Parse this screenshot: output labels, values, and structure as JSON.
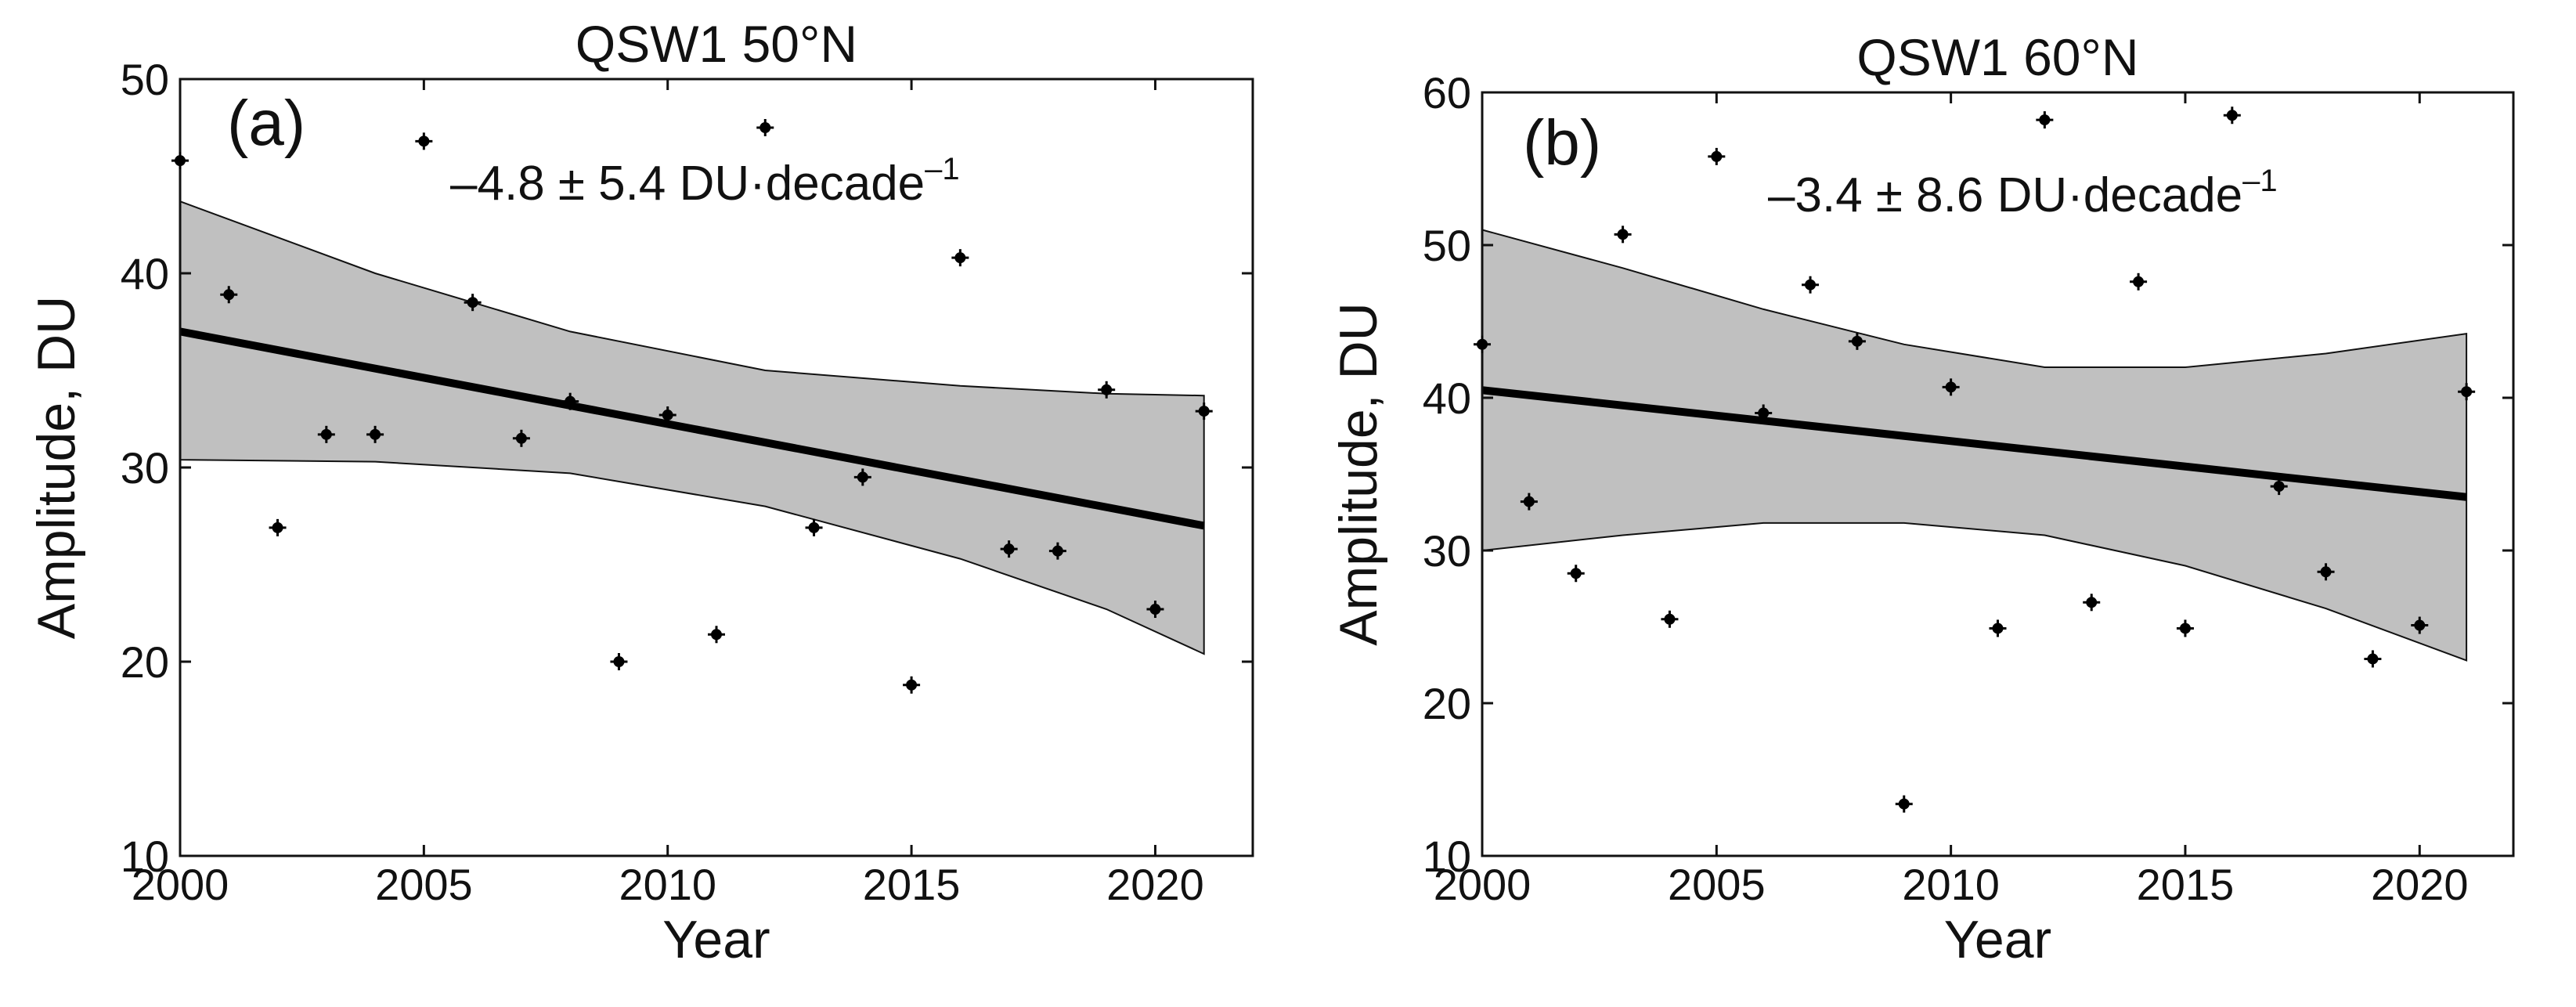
{
  "chart_data": [
    {
      "type": "scatter",
      "title": "QSW1  50°N",
      "panel_label": "(a)",
      "xlabel": "Year",
      "ylabel": "Amplitude,  DU",
      "xlim": [
        2000,
        2022
      ],
      "ylim": [
        10,
        50
      ],
      "x_ticks": [
        2000,
        2005,
        2010,
        2015,
        2020
      ],
      "y_ticks": [
        10,
        20,
        30,
        40,
        50
      ],
      "annotation": {
        "main": "–4.8 ± 5.4 DU·decade",
        "superscript": "–1"
      },
      "points": {
        "x": [
          2000,
          2001,
          2002,
          2003,
          2004,
          2005,
          2006,
          2007,
          2008,
          2009,
          2010,
          2011,
          2012,
          2013,
          2014,
          2015,
          2016,
          2017,
          2018,
          2019,
          2020,
          2021
        ],
        "y": [
          45.8,
          38.9,
          26.9,
          31.7,
          31.7,
          46.8,
          38.5,
          31.5,
          33.4,
          20.0,
          32.7,
          21.4,
          47.5,
          26.9,
          29.5,
          18.8,
          40.8,
          25.8,
          25.7,
          34.0,
          22.7,
          32.9
        ]
      },
      "trend": {
        "x": [
          2000,
          2021
        ],
        "y": [
          37.0,
          27.0
        ]
      },
      "confidence_band": {
        "x": [
          2000,
          2004,
          2008,
          2012,
          2016,
          2019,
          2021
        ],
        "upper": [
          43.7,
          40.0,
          37.0,
          35.0,
          34.2,
          33.8,
          33.7
        ],
        "lower": [
          30.4,
          30.3,
          29.7,
          28.0,
          25.3,
          22.7,
          20.4
        ]
      }
    },
    {
      "type": "scatter",
      "title": "QSW1  60°N",
      "panel_label": "(b)",
      "xlabel": "Year",
      "ylabel": "Amplitude,  DU",
      "xlim": [
        2000,
        2022
      ],
      "ylim": [
        10,
        60
      ],
      "x_ticks": [
        2000,
        2005,
        2010,
        2015,
        2020
      ],
      "y_ticks": [
        10,
        20,
        30,
        40,
        50,
        60
      ],
      "annotation": {
        "main": "–3.4 ± 8.6 DU·decade",
        "superscript": "–1"
      },
      "points": {
        "x": [
          2000,
          2001,
          2002,
          2003,
          2004,
          2005,
          2006,
          2007,
          2008,
          2009,
          2010,
          2011,
          2012,
          2013,
          2014,
          2015,
          2016,
          2017,
          2018,
          2019,
          2020,
          2021
        ],
        "y": [
          43.5,
          33.2,
          28.5,
          50.7,
          25.5,
          55.8,
          39.0,
          47.4,
          43.7,
          13.4,
          40.7,
          24.9,
          58.2,
          26.6,
          47.6,
          24.9,
          58.5,
          34.2,
          28.6,
          22.9,
          25.1,
          40.4
        ]
      },
      "trend": {
        "x": [
          2000,
          2021
        ],
        "y": [
          40.5,
          33.5
        ]
      },
      "confidence_band": {
        "x": [
          2000,
          2003,
          2006,
          2009,
          2012,
          2015,
          2018,
          2021
        ],
        "upper": [
          51.0,
          48.5,
          45.8,
          43.5,
          42.0,
          42.0,
          42.9,
          44.2
        ],
        "lower": [
          30.0,
          31.0,
          31.8,
          31.8,
          31.0,
          29.0,
          26.2,
          22.8
        ]
      }
    }
  ]
}
